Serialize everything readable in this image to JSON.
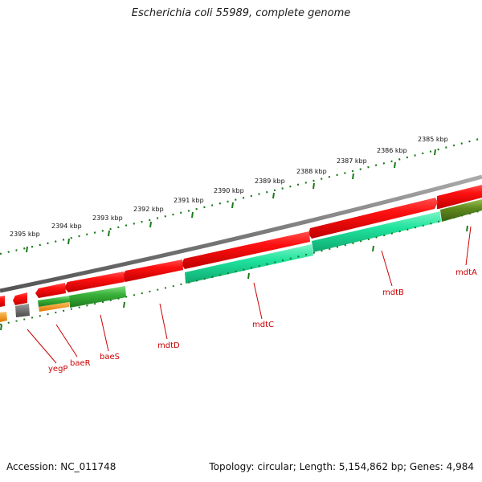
{
  "title": "Escherichia coli 55989, complete genome",
  "footer": {
    "accession": "Accession: NC_011748",
    "summary": "Topology: circular; Length: 5,154,862 bp; Genes: 4,984"
  },
  "ruler": {
    "labels": [
      "2385 kbp",
      "2386 kbp",
      "2387 kbp",
      "2388 kbp",
      "2389 kbp",
      "2390 kbp",
      "2391 kbp",
      "2392 kbp",
      "2393 kbp",
      "2394 kbp",
      "2395 kbp"
    ],
    "color": "#1a7a1a"
  },
  "genes": [
    {
      "name": "mdtA",
      "label_color": "#cc0000"
    },
    {
      "name": "mdtB",
      "label_color": "#cc0000"
    },
    {
      "name": "mdtC",
      "label_color": "#cc0000"
    },
    {
      "name": "mdtD",
      "label_color": "#cc0000"
    },
    {
      "name": "baeS",
      "label_color": "#cc0000"
    },
    {
      "name": "baeR",
      "label_color": "#cc0000"
    },
    {
      "name": "yegP",
      "label_color": "#cc0000"
    }
  ],
  "colors": {
    "backbone": "#808080",
    "cds_red": "#ee1111",
    "cds_teal": "#22e0a0",
    "cds_green": "#33aa33",
    "cds_olive": "#5f8a1f",
    "cds_orange": "#ff9900",
    "cds_gray": "#666666"
  }
}
